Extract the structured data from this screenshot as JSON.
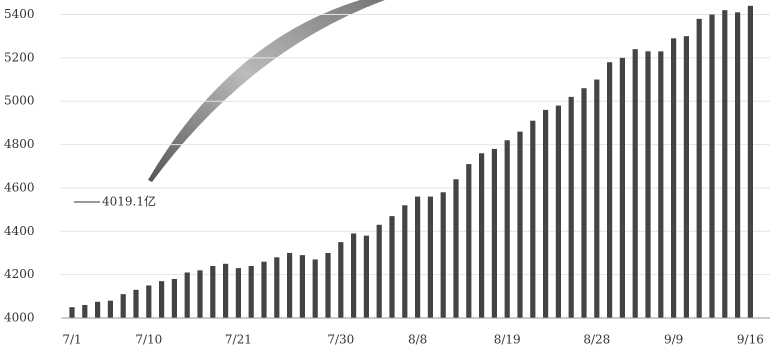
{
  "chart_data": {
    "type": "bar",
    "categories": [
      "7/1",
      null,
      null,
      null,
      null,
      null,
      "7/10",
      null,
      null,
      null,
      null,
      null,
      null,
      "7/21",
      null,
      null,
      null,
      null,
      null,
      null,
      null,
      "7/30",
      null,
      null,
      null,
      null,
      null,
      "8/8",
      null,
      null,
      null,
      null,
      null,
      null,
      "8/19",
      null,
      null,
      null,
      null,
      null,
      null,
      "8/28",
      null,
      null,
      null,
      null,
      null,
      "9/9",
      null,
      null,
      null,
      null,
      null,
      "9/16"
    ],
    "values": [
      4050,
      4060,
      4075,
      4080,
      4110,
      4130,
      4150,
      4170,
      4180,
      4210,
      4220,
      4240,
      4250,
      4230,
      4240,
      4260,
      4280,
      4300,
      4290,
      4270,
      4300,
      4350,
      4390,
      4380,
      4430,
      4470,
      4520,
      4560,
      4560,
      4580,
      4640,
      4710,
      4760,
      4780,
      4820,
      4860,
      4910,
      4960,
      4980,
      5020,
      5060,
      5100,
      5180,
      5200,
      5240,
      5230,
      5230,
      5290,
      5300,
      5380,
      5400,
      5420,
      5410,
      5440
    ],
    "color": "#444444",
    "ylim": [
      4000,
      5430
    ],
    "yticks": [
      4000,
      4200,
      4400,
      4600,
      4800,
      5000,
      5200,
      5400
    ],
    "grid": true,
    "annotation": "4019.1亿"
  }
}
